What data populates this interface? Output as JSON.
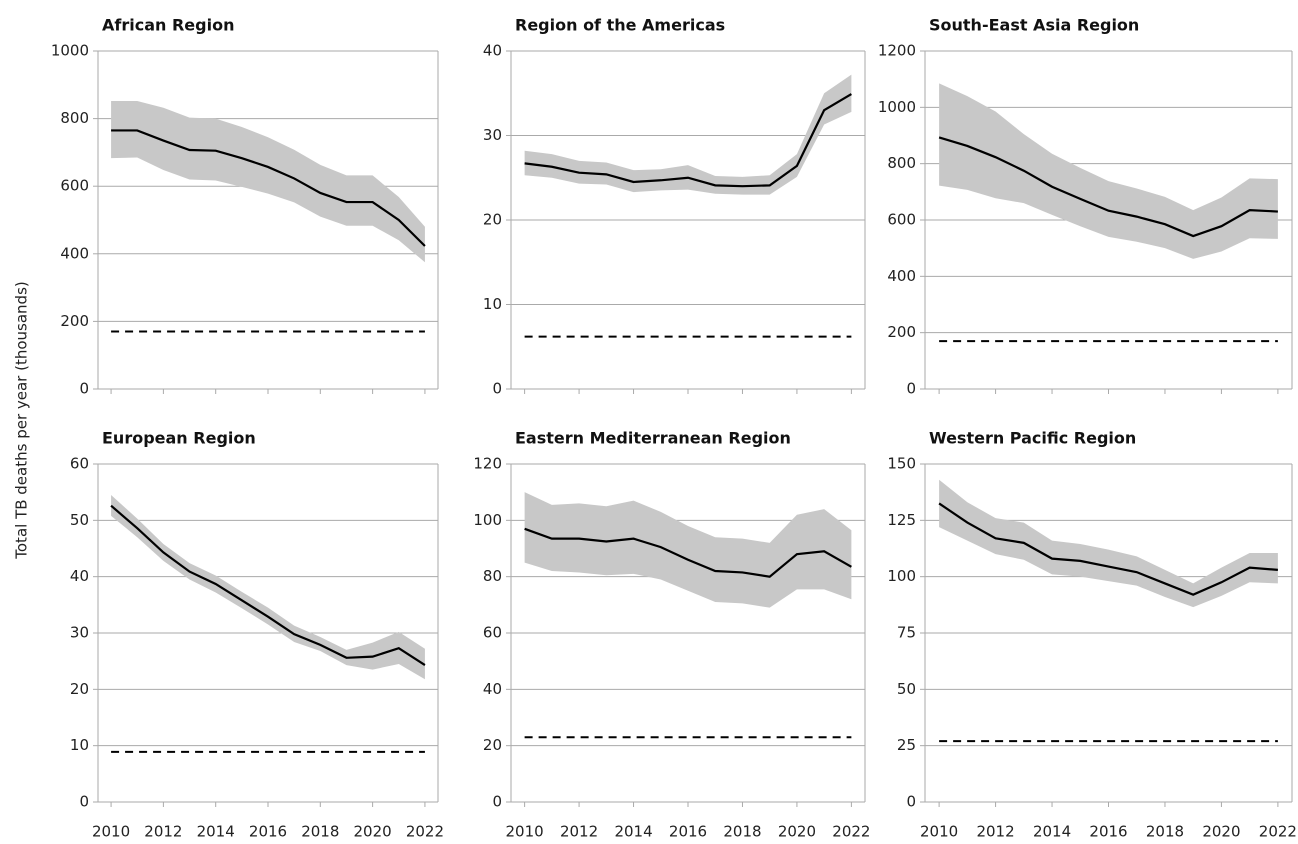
{
  "ylabel": "Total TB deaths per year (thousands)",
  "chart_data": [
    {
      "type": "line",
      "title": "African Region",
      "x": [
        2010,
        2011,
        2012,
        2013,
        2014,
        2015,
        2016,
        2017,
        2018,
        2019,
        2020,
        2021,
        2022
      ],
      "values": [
        765,
        765,
        735,
        707,
        705,
        683,
        657,
        623,
        580,
        553,
        553,
        500,
        423
      ],
      "lower": [
        683,
        685,
        648,
        620,
        617,
        598,
        578,
        552,
        510,
        483,
        483,
        440,
        375
      ],
      "upper": [
        852,
        852,
        832,
        803,
        800,
        775,
        745,
        708,
        663,
        632,
        632,
        568,
        480
      ],
      "target": 170,
      "xlim": [
        2009.5,
        2022.5
      ],
      "xticks": [
        2010,
        2012,
        2014,
        2016,
        2018,
        2020,
        2022
      ],
      "ylim": [
        0,
        1000
      ],
      "yticks": [
        0,
        200,
        400,
        600,
        800,
        1000
      ],
      "grid": true,
      "color": "#000000",
      "band_color": "#c8c8c8"
    },
    {
      "type": "line",
      "title": "Region of the Americas",
      "x": [
        2010,
        2011,
        2012,
        2013,
        2014,
        2015,
        2016,
        2017,
        2018,
        2019,
        2020,
        2021,
        2022
      ],
      "values": [
        26.7,
        26.3,
        25.6,
        25.4,
        24.5,
        24.7,
        25.0,
        24.1,
        24.0,
        24.1,
        26.4,
        33.0,
        34.9
      ],
      "lower": [
        25.3,
        25.0,
        24.3,
        24.2,
        23.3,
        23.5,
        23.6,
        23.1,
        23.0,
        23.0,
        25.1,
        31.3,
        32.8
      ],
      "upper": [
        28.2,
        27.8,
        27.0,
        26.8,
        25.9,
        26.0,
        26.5,
        25.2,
        25.1,
        25.3,
        27.8,
        35.0,
        37.2
      ],
      "target": 6.2,
      "xlim": [
        2009.5,
        2022.5
      ],
      "xticks": [
        2010,
        2012,
        2014,
        2016,
        2018,
        2020,
        2022
      ],
      "ylim": [
        0,
        40
      ],
      "yticks": [
        0,
        10,
        20,
        30,
        40
      ],
      "grid": true,
      "color": "#000000",
      "band_color": "#c8c8c8"
    },
    {
      "type": "line",
      "title": "South-East Asia Region",
      "x": [
        2010,
        2011,
        2012,
        2013,
        2014,
        2015,
        2016,
        2017,
        2018,
        2019,
        2020,
        2021,
        2022
      ],
      "values": [
        893,
        863,
        823,
        775,
        718,
        675,
        633,
        612,
        585,
        543,
        578,
        635,
        630
      ],
      "lower": [
        722,
        707,
        677,
        660,
        618,
        578,
        540,
        523,
        500,
        462,
        488,
        535,
        533
      ],
      "upper": [
        1085,
        1040,
        985,
        905,
        835,
        785,
        738,
        712,
        682,
        635,
        680,
        748,
        745
      ],
      "target": 170,
      "xlim": [
        2009.5,
        2022.5
      ],
      "xticks": [
        2010,
        2012,
        2014,
        2016,
        2018,
        2020,
        2022
      ],
      "ylim": [
        0,
        1200
      ],
      "yticks": [
        0,
        200,
        400,
        600,
        800,
        1000,
        1200
      ],
      "grid": true,
      "color": "#000000",
      "band_color": "#c8c8c8"
    },
    {
      "type": "line",
      "title": "European Region",
      "x": [
        2010,
        2011,
        2012,
        2013,
        2014,
        2015,
        2016,
        2017,
        2018,
        2019,
        2020,
        2021,
        2022
      ],
      "values": [
        52.6,
        48.6,
        44.3,
        40.9,
        38.7,
        35.8,
        32.9,
        29.8,
        27.9,
        25.6,
        25.8,
        27.3,
        24.3
      ],
      "lower": [
        50.8,
        47.0,
        42.8,
        39.5,
        37.2,
        34.4,
        31.5,
        28.4,
        26.8,
        24.3,
        23.5,
        24.5,
        21.8
      ],
      "upper": [
        54.5,
        50.3,
        45.8,
        42.4,
        40.2,
        37.3,
        34.5,
        31.3,
        29.3,
        27.0,
        28.3,
        30.2,
        27.2
      ],
      "target": 8.9,
      "xlim": [
        2009.5,
        2022.5
      ],
      "xticks": [
        2010,
        2012,
        2014,
        2016,
        2018,
        2020,
        2022
      ],
      "ylim": [
        0,
        60
      ],
      "yticks": [
        0,
        10,
        20,
        30,
        40,
        50,
        60
      ],
      "grid": true,
      "color": "#000000",
      "band_color": "#c8c8c8"
    },
    {
      "type": "line",
      "title": "Eastern Mediterranean Region",
      "x": [
        2010,
        2011,
        2012,
        2013,
        2014,
        2015,
        2016,
        2017,
        2018,
        2019,
        2020,
        2021,
        2022
      ],
      "values": [
        97,
        93.5,
        93.5,
        92.5,
        93.5,
        90.5,
        86,
        82,
        81.5,
        80,
        88,
        89,
        83.5
      ],
      "lower": [
        85,
        82,
        81.5,
        80.5,
        81,
        79,
        75,
        71,
        70.5,
        69,
        75.5,
        75.5,
        72
      ],
      "upper": [
        110,
        105.5,
        106,
        105,
        107,
        103,
        98,
        94,
        93.5,
        92,
        102,
        104,
        96.5
      ],
      "target": 23,
      "xlim": [
        2009.5,
        2022.5
      ],
      "xticks": [
        2010,
        2012,
        2014,
        2016,
        2018,
        2020,
        2022
      ],
      "ylim": [
        0,
        120
      ],
      "yticks": [
        0,
        20,
        40,
        60,
        80,
        100,
        120
      ],
      "grid": true,
      "color": "#000000",
      "band_color": "#c8c8c8"
    },
    {
      "type": "line",
      "title": "Western Pacific Region",
      "x": [
        2010,
        2011,
        2012,
        2013,
        2014,
        2015,
        2016,
        2017,
        2018,
        2019,
        2020,
        2021,
        2022
      ],
      "values": [
        132.5,
        124,
        117,
        115,
        108,
        107,
        104.5,
        102,
        97,
        92,
        97.5,
        104,
        103
      ],
      "lower": [
        122,
        116,
        110,
        107.5,
        101,
        100,
        98,
        96,
        91,
        86.5,
        91.5,
        97.5,
        97
      ],
      "upper": [
        143,
        133,
        126,
        124,
        116,
        114.5,
        112,
        109,
        103,
        97,
        104,
        110.5,
        110.5
      ],
      "target": 27,
      "xlim": [
        2009.5,
        2022.5
      ],
      "xticks": [
        2010,
        2012,
        2014,
        2016,
        2018,
        2020,
        2022
      ],
      "ylim": [
        0,
        150
      ],
      "yticks": [
        0,
        25,
        50,
        75,
        100,
        125,
        150
      ],
      "grid": true,
      "color": "#000000",
      "band_color": "#c8c8c8"
    }
  ]
}
